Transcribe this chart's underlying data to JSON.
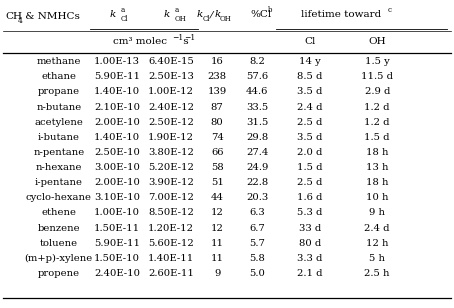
{
  "rows": [
    [
      "methane",
      "1.00E-13",
      "6.40E-15",
      "16",
      "8.2",
      "14 y",
      "1.5 y"
    ],
    [
      "ethane",
      "5.90E-11",
      "2.50E-13",
      "238",
      "57.6",
      "8.5 d",
      "11.5 d"
    ],
    [
      "propane",
      "1.40E-10",
      "1.00E-12",
      "139",
      "44.6",
      "3.5 d",
      "2.9 d"
    ],
    [
      "n-butane",
      "2.10E-10",
      "2.40E-12",
      "87",
      "33.5",
      "2.4 d",
      "1.2 d"
    ],
    [
      "acetylene",
      "2.00E-10",
      "2.50E-12",
      "80",
      "31.5",
      "2.5 d",
      "1.2 d"
    ],
    [
      "i-butane",
      "1.40E-10",
      "1.90E-12",
      "74",
      "29.8",
      "3.5 d",
      "1.5 d"
    ],
    [
      "n-pentane",
      "2.50E-10",
      "3.80E-12",
      "66",
      "27.4",
      "2.0 d",
      "18 h"
    ],
    [
      "n-hexane",
      "3.00E-10",
      "5.20E-12",
      "58",
      "24.9",
      "1.5 d",
      "13 h"
    ],
    [
      "i-pentane",
      "2.00E-10",
      "3.90E-12",
      "51",
      "22.8",
      "2.5 d",
      "18 h"
    ],
    [
      "cyclo-hexane",
      "3.10E-10",
      "7.00E-12",
      "44",
      "20.3",
      "1.6 d",
      "10 h"
    ],
    [
      "ethene",
      "1.00E-10",
      "8.50E-12",
      "12",
      "6.3",
      "5.3 d",
      "9 h"
    ],
    [
      "benzene",
      "1.50E-11",
      "1.20E-12",
      "12",
      "6.7",
      "33 d",
      "2.4 d"
    ],
    [
      "toluene",
      "5.90E-11",
      "5.60E-12",
      "11",
      "5.7",
      "80 d",
      "12 h"
    ],
    [
      "(m+p)-xylene",
      "1.50E-10",
      "1.40E-11",
      "11",
      "5.8",
      "3.3 d",
      "5 h"
    ],
    [
      "propene",
      "2.40E-10",
      "2.60E-11",
      "9",
      "5.0",
      "2.1 d",
      "2.5 h"
    ]
  ],
  "bg_color": "#ffffff",
  "text_color": "#000000",
  "font_size": 7.2,
  "header_font_size": 7.5,
  "fig_width": 4.54,
  "fig_height": 3.08
}
